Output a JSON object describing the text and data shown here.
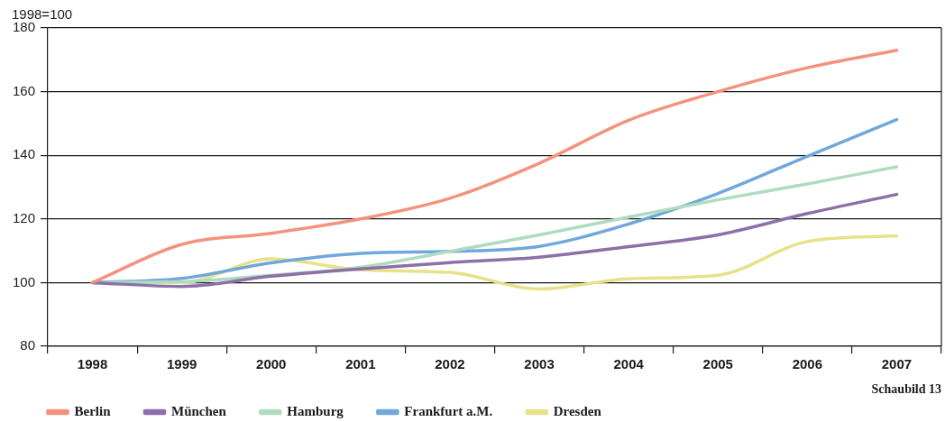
{
  "chart_data": {
    "type": "line",
    "ylabel": "1998=100",
    "categories": [
      "1998",
      "1999",
      "2000",
      "2001",
      "2002",
      "2003",
      "2004",
      "2005",
      "2006",
      "2007"
    ],
    "series": [
      {
        "name": "Berlin",
        "color": "#f4927e",
        "values": [
          100,
          112,
          115.5,
          120,
          126.5,
          137.5,
          151,
          160,
          167.5,
          173
        ]
      },
      {
        "name": "München",
        "color": "#8d6fa9",
        "values": [
          100,
          98.8,
          102,
          104.3,
          106.3,
          108,
          111.3,
          115,
          121.7,
          127.7
        ]
      },
      {
        "name": "Hamburg",
        "color": "#aedcc1",
        "values": [
          100,
          100.3,
          102.3,
          104.8,
          109.8,
          115,
          120.6,
          126,
          131,
          136.4
        ]
      },
      {
        "name": "Frankfurt a.M.",
        "color": "#70a8dc",
        "values": [
          100,
          101.3,
          106.2,
          109.2,
          109.8,
          111.4,
          118.4,
          128,
          139.7,
          151.2
        ]
      },
      {
        "name": "Dresden",
        "color": "#e7e18a",
        "values": [
          100,
          100,
          107.5,
          104,
          103.2,
          98,
          101.2,
          102.3,
          112.9,
          114.7
        ]
      }
    ],
    "ylim": [
      80,
      180
    ],
    "yticks": [
      80,
      100,
      120,
      140,
      160,
      180
    ],
    "grid": "y",
    "legend": "bottom left",
    "marker": "none",
    "line_style": "solid",
    "annotations": [
      "Schaubild 13"
    ]
  }
}
